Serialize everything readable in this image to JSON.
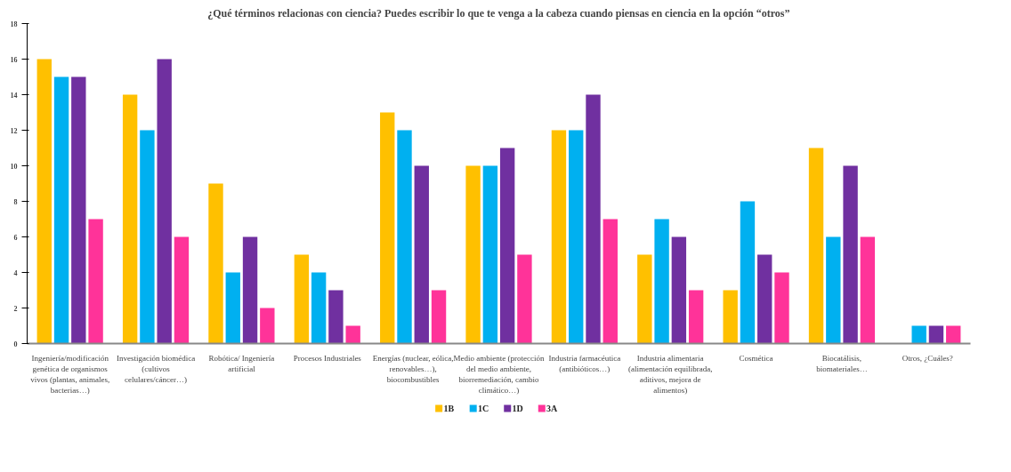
{
  "chart_data": {
    "type": "bar",
    "title": "¿Qué términos relacionas con ciencia? Puedes escribir lo que te venga a la cabeza cuando piensas en ciencia en la opción “otros”",
    "categories": [
      "Ingeniería/modificación genética de organismos vivos (plantas, animales, bacterias…)",
      "Investigación biomédica (cultivos celulares/cáncer…)",
      "Robótica/ Ingeniería artificial",
      "Procesos Industriales",
      "Energías (nuclear, eólica, renovables…), biocombustibles",
      "Medio ambiente (protección del medio ambiente, biorremediación, cambio climático…)",
      "Industria farmacéutica (antibióticos…)",
      "Industria alimentaria (alimentación equilibrada, aditivos, mejora de alimentos)",
      "Cosmética",
      "Biocatálisis, biomateriales…",
      "Otros, ¿Cuáles?"
    ],
    "series": [
      {
        "name": "1B",
        "color": "#ffc000",
        "values": [
          16,
          14,
          9,
          5,
          13,
          10,
          12,
          5,
          3,
          11,
          0
        ]
      },
      {
        "name": "1C",
        "color": "#00b0f0",
        "values": [
          15,
          12,
          4,
          4,
          12,
          10,
          12,
          7,
          8,
          6,
          1
        ]
      },
      {
        "name": "1D",
        "color": "#7030a0",
        "values": [
          15,
          16,
          6,
          3,
          10,
          11,
          14,
          6,
          5,
          10,
          1
        ]
      },
      {
        "name": "3A",
        "color": "#ff3399",
        "values": [
          7,
          6,
          2,
          1,
          3,
          5,
          7,
          3,
          4,
          6,
          1
        ]
      }
    ],
    "ylim": [
      0,
      18
    ],
    "yticks": [
      0,
      2,
      4,
      6,
      8,
      10,
      12,
      14,
      16,
      18
    ],
    "grid": false,
    "legend": "bottom"
  }
}
